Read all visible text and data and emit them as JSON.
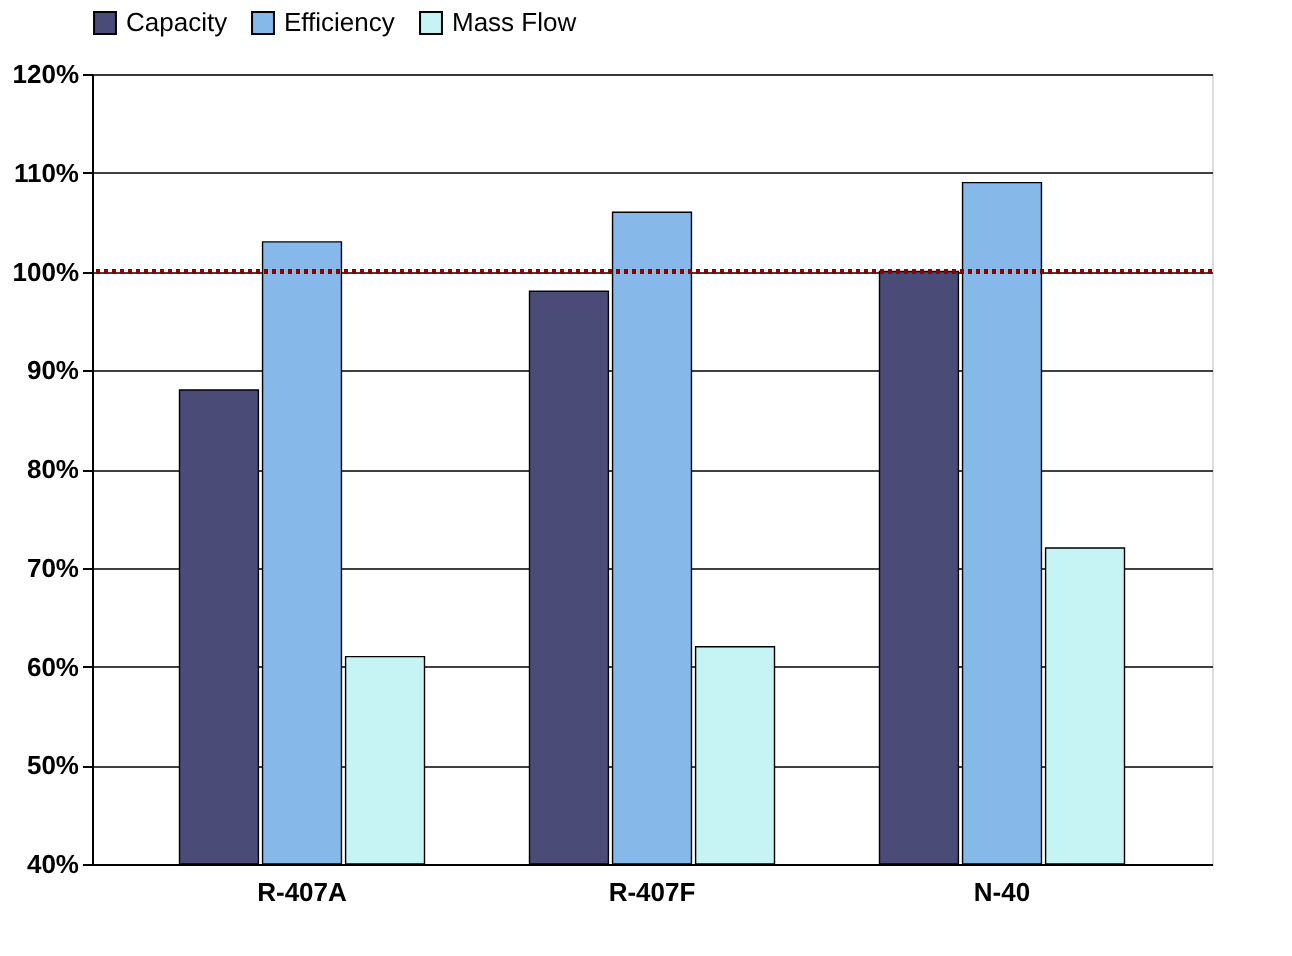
{
  "chart_data": {
    "type": "bar",
    "categories": [
      "R-407A",
      "R-407F",
      "N-40"
    ],
    "series": [
      {
        "name": "Capacity",
        "color": "#4b4b78",
        "values": [
          88,
          98,
          100
        ]
      },
      {
        "name": "Efficiency",
        "color": "#86b8ea",
        "values": [
          103,
          106,
          109
        ]
      },
      {
        "name": "Mass Flow",
        "color": "#c6f4f4",
        "values": [
          61,
          62,
          72
        ]
      }
    ],
    "ylim": [
      40,
      120
    ],
    "yticks": [
      {
        "value": 40,
        "label": "40%"
      },
      {
        "value": 50,
        "label": "50%"
      },
      {
        "value": 60,
        "label": "60%"
      },
      {
        "value": 70,
        "label": "70%"
      },
      {
        "value": 80,
        "label": "80%"
      },
      {
        "value": 90,
        "label": "90%"
      },
      {
        "value": 100,
        "label": "100%"
      },
      {
        "value": 110,
        "label": "110%"
      },
      {
        "value": 120,
        "label": "120%"
      }
    ],
    "ref_lines": [
      {
        "axis": "y",
        "value": 100,
        "color": "#8b0000",
        "line_style": "dotted"
      }
    ],
    "grid": "y",
    "legend": "top"
  }
}
